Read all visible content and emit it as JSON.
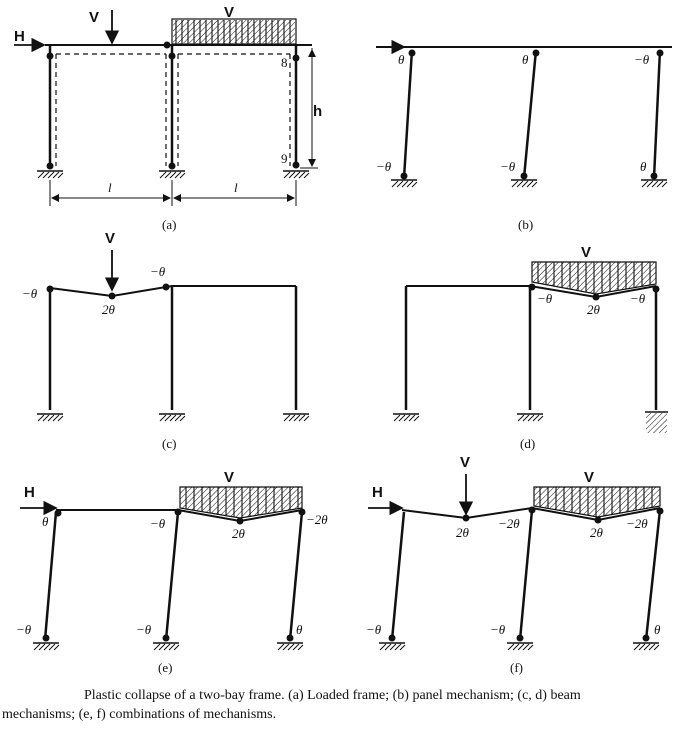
{
  "loads": {
    "H": "H",
    "V": "V"
  },
  "dims": {
    "h": "h",
    "l": "l"
  },
  "hinge_numbers": {
    "n8": "8",
    "n9": "9"
  },
  "rotations": {
    "theta": "θ",
    "neg_theta": "−θ",
    "two_theta": "2θ",
    "neg_two_theta": "−2θ"
  },
  "panel_labels": {
    "a": "(a)",
    "b": "(b)",
    "c": "(c)",
    "d": "(d)",
    "e": "(e)",
    "f": "(f)"
  },
  "caption": {
    "line1": "Plastic collapse of a two-bay frame. (a) Loaded frame; (b) panel mechanism; (c, d) beam",
    "line2": "mechanisms; (e, f) combinations of mechanisms."
  }
}
